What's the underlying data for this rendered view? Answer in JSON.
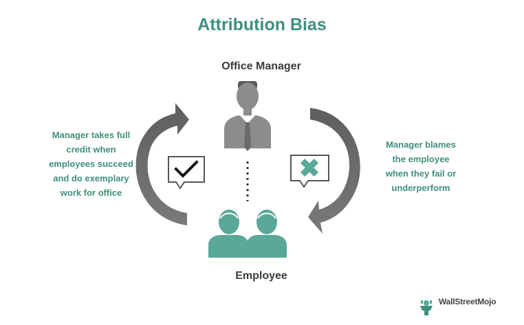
{
  "title": "Attribution Bias",
  "top_node": {
    "label": "Office Manager",
    "icon": "manager-icon"
  },
  "bottom_node": {
    "label": "Employee",
    "icon": "employees-icon"
  },
  "left_note": {
    "icon": "checkmark-icon",
    "lines": [
      "Manager takes full",
      "credit when",
      "employees succeed",
      "and do exemplary",
      "work for office"
    ]
  },
  "right_note": {
    "icon": "cross-icon",
    "lines": [
      "Manager blames",
      "the employee",
      "when they fail or",
      "underperform"
    ]
  },
  "brand": {
    "text": "WallStreetMojo",
    "icon": "wallstreetmojo-logo"
  },
  "colors": {
    "accent": "#3f8f7f",
    "icon_green": "#5aa898",
    "arrow_gray": "#676767",
    "figure_gray": "#8c8c8c",
    "text_dark": "#3b3b3b"
  }
}
